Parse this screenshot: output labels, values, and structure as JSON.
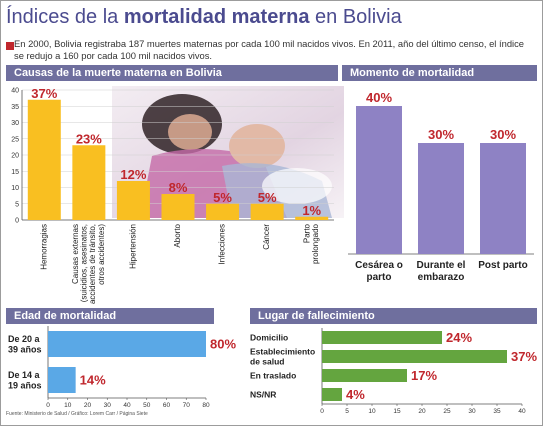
{
  "title": {
    "prefix": "Índices de la ",
    "bold": "mortalidad materna",
    "suffix": " en Bolivia"
  },
  "intro": "En 2000, Bolivia registraba 187 muertes maternas por cada 100 mil nacidos vivos. En 2011, año del último censo, el índice se redujo a 160 por cada 100 mil nacidos vivos.",
  "footnote": "Fuente: Ministerio de Salud / Gráfico: Lorem Carr / Página Siete",
  "colors": {
    "header": "#6f6f9e",
    "yellow": "#f9bf21",
    "purple": "#8e82c4",
    "blue": "#5aa8e6",
    "green": "#64a53f",
    "value": "#c0272d"
  },
  "photo": {
    "icon": "mother-and-baby-photo"
  },
  "chart_data": [
    {
      "type": "bar",
      "title": "Causas de la muerte materna en Bolivia",
      "categories": [
        "Hemorragias",
        "Causas externas (suicidios, asesinatos, accidentes de tránsito, otros accidentes)",
        "Hipertensión",
        "Aborto",
        "Infecciones",
        "Cáncer",
        "Parto prolongado"
      ],
      "category_lines": [
        [
          "Hemorragias"
        ],
        [
          "Causas externas",
          "(suicidios, asesinatos,",
          "accidentes de tránsito,",
          "otros accidentes)"
        ],
        [
          "Hipertensión"
        ],
        [
          "Aborto"
        ],
        [
          "Infecciones"
        ],
        [
          "Cáncer"
        ],
        [
          "Parto",
          "prolongado"
        ]
      ],
      "values": [
        37,
        23,
        12,
        8,
        5,
        5,
        1
      ],
      "value_labels": [
        "37%",
        "23%",
        "12%",
        "8%",
        "5%",
        "5%",
        "1%"
      ],
      "ylim": [
        0,
        40
      ],
      "yticks": [
        "0",
        "5",
        "10",
        "15",
        "20",
        "25",
        "30",
        "35",
        "40"
      ]
    },
    {
      "type": "bar",
      "title": "Momento de mortalidad",
      "categories": [
        "Cesárea o parto",
        "Durante el embarazo",
        "Post parto"
      ],
      "category_lines": [
        [
          "Cesárea o",
          "parto"
        ],
        [
          "Durante el",
          "embarazo"
        ],
        [
          "Post parto"
        ]
      ],
      "values": [
        40,
        30,
        30
      ],
      "value_labels": [
        "40%",
        "30%",
        "30%"
      ],
      "ylim": [
        0,
        40
      ]
    },
    {
      "type": "bar",
      "orientation": "horizontal",
      "title": "Edad de mortalidad",
      "categories": [
        "De 20 a 39 años",
        "De 14 a 19 años"
      ],
      "category_lines": [
        [
          "De 20 a",
          "39 años"
        ],
        [
          "De 14 a",
          "19 años"
        ]
      ],
      "values": [
        80,
        14
      ],
      "value_labels": [
        "80%",
        "14%"
      ],
      "xlim": [
        0,
        80
      ],
      "xticks": [
        "0",
        "10",
        "20",
        "30",
        "40",
        "50",
        "60",
        "70",
        "80"
      ]
    },
    {
      "type": "bar",
      "orientation": "horizontal",
      "title": "Lugar de fallecimiento",
      "categories": [
        "Domicilio",
        "Establecimiento de salud",
        "En traslado",
        "NS/NR"
      ],
      "category_lines": [
        [
          "Domicilio"
        ],
        [
          "Establecimiento",
          "de salud"
        ],
        [
          "En traslado"
        ],
        [
          "NS/NR"
        ]
      ],
      "values": [
        24,
        37,
        17,
        4
      ],
      "value_labels": [
        "24%",
        "37%",
        "17%",
        "4%"
      ],
      "xlim": [
        0,
        40
      ],
      "xticks": [
        "0",
        "5",
        "10",
        "15",
        "20",
        "25",
        "30",
        "35",
        "40"
      ]
    }
  ]
}
